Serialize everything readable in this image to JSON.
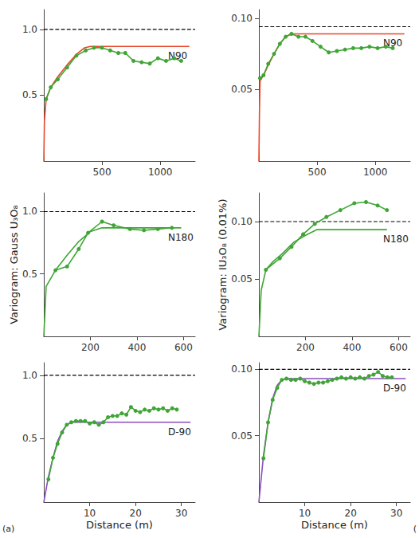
{
  "chart_data": [
    {
      "type": "line",
      "annotation": "N90",
      "grid": false,
      "xlim": [
        0,
        1300
      ],
      "xticks": [
        500,
        1000
      ],
      "ylim": [
        0,
        1.15
      ],
      "yticks": [
        0.5,
        {
          "value": 1,
          "label": "1.0"
        }
      ],
      "series": [
        {
          "type": "line",
          "color": "#000000",
          "line_style": "dashed",
          "marker": "none",
          "x": [
            0,
            1300
          ],
          "values": [
            1,
            1
          ]
        },
        {
          "type": "line",
          "color": "#e8472a",
          "line_style": "solid",
          "marker": "none",
          "x": [
            0,
            5,
            20,
            60,
            120,
            200,
            280,
            350,
            400,
            1250
          ],
          "values": [
            0,
            0.3,
            0.47,
            0.56,
            0.64,
            0.73,
            0.81,
            0.86,
            0.87,
            0.87
          ]
        },
        {
          "type": "line",
          "color": "#3fa535",
          "line_style": "solid",
          "marker": "circle",
          "x": [
            20,
            60,
            120,
            200,
            280,
            360,
            430,
            500,
            570,
            640,
            700,
            770,
            840,
            910,
            980,
            1050,
            1120,
            1180
          ],
          "values": [
            0.47,
            0.56,
            0.62,
            0.71,
            0.8,
            0.84,
            0.86,
            0.86,
            0.84,
            0.82,
            0.82,
            0.76,
            0.75,
            0.74,
            0.78,
            0.76,
            0.78,
            0.76
          ]
        }
      ]
    },
    {
      "type": "line",
      "annotation": "N90",
      "grid": false,
      "xlim": [
        0,
        1300
      ],
      "xticks": [
        500,
        1000
      ],
      "ylim": [
        0,
        0.106
      ],
      "yticks": [
        0.05,
        {
          "value": 0.1,
          "label": "0.10"
        }
      ],
      "series": [
        {
          "type": "line",
          "color": "#000000",
          "line_style": "dashed",
          "marker": "none",
          "x": [
            0,
            1300
          ],
          "values": [
            0.094,
            0.094
          ]
        },
        {
          "type": "line",
          "color": "#e8472a",
          "line_style": "solid",
          "marker": "none",
          "x": [
            0,
            5,
            10,
            40,
            80,
            130,
            180,
            230,
            280,
            1250
          ],
          "values": [
            0,
            0.035,
            0.056,
            0.06,
            0.067,
            0.075,
            0.082,
            0.087,
            0.089,
            0.089
          ]
        },
        {
          "type": "line",
          "color": "#3fa535",
          "line_style": "solid",
          "marker": "circle",
          "x": [
            10,
            40,
            80,
            130,
            180,
            230,
            280,
            340,
            400,
            460,
            530,
            600,
            670,
            740,
            810,
            880,
            950,
            1020,
            1090,
            1150
          ],
          "values": [
            0.058,
            0.06,
            0.068,
            0.075,
            0.082,
            0.087,
            0.089,
            0.087,
            0.087,
            0.084,
            0.08,
            0.076,
            0.077,
            0.078,
            0.079,
            0.079,
            0.08,
            0.079,
            0.08,
            0.079
          ]
        }
      ]
    },
    {
      "type": "line",
      "annotation": "N180",
      "grid": false,
      "ylabel": "Variogram: Gauss U₃O₈",
      "xlim": [
        0,
        650
      ],
      "xticks": [
        200,
        400,
        600
      ],
      "ylim": [
        0,
        1.15
      ],
      "yticks": [
        0.5,
        {
          "value": 1,
          "label": "1.0"
        }
      ],
      "series": [
        {
          "type": "line",
          "color": "#000000",
          "line_style": "dashed",
          "marker": "none",
          "x": [
            0,
            650
          ],
          "values": [
            1,
            1
          ]
        },
        {
          "type": "line",
          "color": "#3fa535",
          "line_style": "solid",
          "marker": "none",
          "x": [
            0,
            10,
            50,
            100,
            150,
            200,
            250,
            590
          ],
          "values": [
            0,
            0.4,
            0.53,
            0.65,
            0.76,
            0.84,
            0.87,
            0.87
          ]
        },
        {
          "type": "line",
          "color": "#3fa535",
          "line_style": "solid",
          "marker": "circle",
          "x": [
            50,
            100,
            150,
            190,
            250,
            300,
            370,
            430,
            490,
            550
          ],
          "values": [
            0.53,
            0.56,
            0.7,
            0.83,
            0.92,
            0.89,
            0.86,
            0.85,
            0.86,
            0.87
          ]
        }
      ]
    },
    {
      "type": "line",
      "annotation": "N180",
      "grid": false,
      "ylabel": "Variogram: IU₃O₈ (0.01%)",
      "xlim": [
        0,
        650
      ],
      "xticks": [
        200,
        400,
        600
      ],
      "ylim": [
        0,
        0.125
      ],
      "yticks": [
        0.05,
        {
          "value": 0.1,
          "label": "0.10"
        }
      ],
      "series": [
        {
          "type": "line",
          "color": "#000000",
          "line_style": "dashed",
          "marker": "none",
          "x": [
            0,
            650
          ],
          "values": [
            0.1,
            0.1
          ]
        },
        {
          "type": "line",
          "color": "#3fa535",
          "line_style": "solid",
          "marker": "none",
          "x": [
            0,
            10,
            30,
            60,
            100,
            150,
            200,
            250,
            550
          ],
          "values": [
            0,
            0.04,
            0.058,
            0.065,
            0.072,
            0.082,
            0.088,
            0.093,
            0.093
          ]
        },
        {
          "type": "line",
          "color": "#3fa535",
          "line_style": "solid",
          "marker": "circle",
          "x": [
            30,
            90,
            140,
            190,
            240,
            290,
            350,
            410,
            460,
            510,
            550
          ],
          "values": [
            0.058,
            0.068,
            0.078,
            0.089,
            0.098,
            0.104,
            0.11,
            0.116,
            0.117,
            0.114,
            0.11
          ]
        }
      ]
    },
    {
      "type": "line",
      "annotation": "D-90",
      "caption": "(a)",
      "grid": false,
      "xlabel": "Distance (m)",
      "xlim": [
        0,
        33
      ],
      "xticks": [
        10,
        20,
        30
      ],
      "ylim": [
        0,
        1.1
      ],
      "yticks": [
        0.5,
        {
          "value": 1,
          "label": "1.0"
        }
      ],
      "series": [
        {
          "type": "line",
          "color": "#000000",
          "line_style": "dashed",
          "marker": "none",
          "x": [
            0,
            33
          ],
          "values": [
            1,
            1
          ]
        },
        {
          "type": "line",
          "color": "#8a4fbf",
          "line_style": "solid",
          "marker": "none",
          "x": [
            0,
            1,
            2,
            3,
            4,
            5,
            6,
            32
          ],
          "values": [
            0,
            0.2,
            0.35,
            0.48,
            0.56,
            0.61,
            0.63,
            0.63
          ]
        },
        {
          "type": "line",
          "color": "#3fa535",
          "line_style": "solid",
          "marker": "circle",
          "x": [
            1,
            2,
            3,
            4,
            5,
            6,
            7,
            8,
            9,
            10,
            11,
            12,
            13,
            14,
            15,
            16,
            17,
            18,
            19,
            20,
            21,
            22,
            23,
            24,
            25,
            26,
            27,
            28,
            29
          ],
          "values": [
            0.18,
            0.35,
            0.46,
            0.55,
            0.61,
            0.63,
            0.64,
            0.64,
            0.64,
            0.62,
            0.63,
            0.61,
            0.63,
            0.67,
            0.68,
            0.68,
            0.7,
            0.69,
            0.75,
            0.72,
            0.71,
            0.73,
            0.72,
            0.74,
            0.73,
            0.74,
            0.72,
            0.74,
            0.73
          ]
        }
      ]
    },
    {
      "type": "line",
      "annotation": "D-90",
      "caption": "(",
      "grid": false,
      "xlabel": "Distance (m)",
      "xlim": [
        0,
        33
      ],
      "xticks": [
        10,
        20,
        30
      ],
      "ylim": [
        0,
        0.105
      ],
      "yticks": [
        0.05,
        {
          "value": 0.1,
          "label": "0.10"
        }
      ],
      "series": [
        {
          "type": "line",
          "color": "#000000",
          "line_style": "dashed",
          "marker": "none",
          "x": [
            0,
            33
          ],
          "values": [
            0.1,
            0.1
          ]
        },
        {
          "type": "line",
          "color": "#8a4fbf",
          "line_style": "solid",
          "marker": "none",
          "x": [
            0,
            1,
            2,
            3,
            4,
            5,
            6,
            32
          ],
          "values": [
            0,
            0.035,
            0.06,
            0.078,
            0.088,
            0.092,
            0.093,
            0.093
          ]
        },
        {
          "type": "line",
          "color": "#3fa535",
          "line_style": "solid",
          "marker": "circle",
          "x": [
            1,
            2,
            3,
            4,
            5,
            6,
            7,
            8,
            9,
            10,
            11,
            12,
            13,
            14,
            15,
            16,
            17,
            18,
            19,
            20,
            21,
            22,
            23,
            24,
            25,
            26,
            27,
            28,
            29
          ],
          "values": [
            0.033,
            0.06,
            0.077,
            0.086,
            0.092,
            0.093,
            0.092,
            0.092,
            0.093,
            0.091,
            0.09,
            0.089,
            0.09,
            0.09,
            0.091,
            0.092,
            0.093,
            0.094,
            0.093,
            0.094,
            0.093,
            0.094,
            0.093,
            0.095,
            0.096,
            0.098,
            0.095,
            0.094,
            0.094
          ]
        }
      ]
    }
  ]
}
